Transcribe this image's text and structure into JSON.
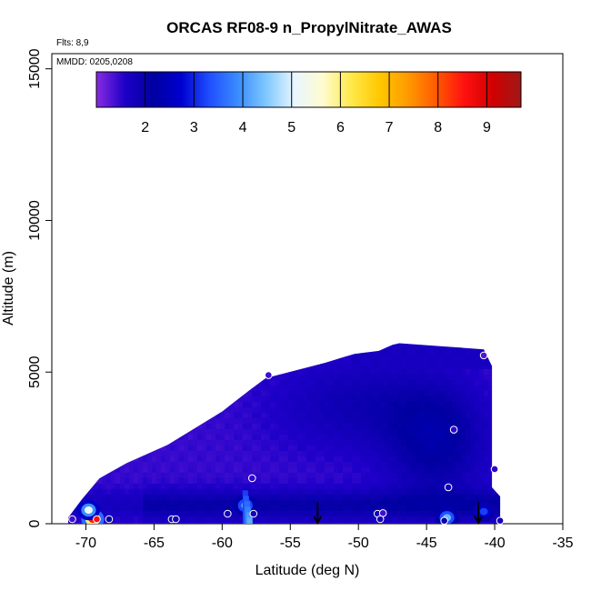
{
  "chart_data": {
    "type": "heatmap",
    "title": "ORCAS RF08-9 n_PropylNitrate_AWAS",
    "flights_note": "Flts: 8,9",
    "dates_note": "MMDD: 0205,0208",
    "xlabel": "Latitude (deg N)",
    "ylabel": "Altitude (m)",
    "xlim": [
      -72.5,
      -35
    ],
    "ylim": [
      0,
      15500
    ],
    "x_ticks": [
      -70,
      -65,
      -60,
      -55,
      -50,
      -45,
      -40,
      -35
    ],
    "y_ticks": [
      0,
      5000,
      10000,
      15000
    ],
    "colorbar": {
      "ticks": [
        2,
        3,
        4,
        5,
        6,
        7,
        8,
        9
      ],
      "range": [
        1,
        9.7
      ],
      "colors": [
        "#8a2be2",
        "#1e00c8",
        "#0000a0",
        "#0000d0",
        "#1f4fff",
        "#3a8cff",
        "#7ec8ff",
        "#e8f6ff",
        "#fffbd0",
        "#ffe94a",
        "#ffc800",
        "#ff9a00",
        "#ff5a00",
        "#ff1010",
        "#d00000",
        "#a01818"
      ]
    },
    "field_outline": [
      [
        -71.3,
        0
      ],
      [
        -71.3,
        200
      ],
      [
        -70.3,
        800
      ],
      [
        -69.0,
        1500
      ],
      [
        -67.0,
        2000
      ],
      [
        -64.0,
        2600
      ],
      [
        -60.0,
        3700
      ],
      [
        -58.0,
        4400
      ],
      [
        -56.8,
        4800
      ],
      [
        -52.5,
        5300
      ],
      [
        -50.3,
        5600
      ],
      [
        -48.5,
        5700
      ],
      [
        -47.5,
        5900
      ],
      [
        -47.0,
        5950
      ],
      [
        -40.8,
        5750
      ],
      [
        -40.2,
        5200
      ],
      [
        -40.2,
        1200
      ],
      [
        -39.6,
        900
      ],
      [
        -39.6,
        0
      ]
    ],
    "hotspots": [
      {
        "lat": -69.5,
        "alt": 150,
        "value": 8.5
      },
      {
        "lat": -69.8,
        "alt": 450,
        "value": 5.2
      },
      {
        "lat": -58.3,
        "alt": 600,
        "value": 4.2
      },
      {
        "lat": -43.5,
        "alt": 200,
        "value": 4.3
      },
      {
        "lat": -40.8,
        "alt": 400,
        "value": 3.2
      }
    ],
    "samples": [
      {
        "lat": -71.0,
        "alt": 150,
        "value": 1.4
      },
      {
        "lat": -69.2,
        "alt": 150,
        "value": 8.6
      },
      {
        "lat": -68.3,
        "alt": 150,
        "value": 2.2
      },
      {
        "lat": -63.7,
        "alt": 150,
        "value": 1.8
      },
      {
        "lat": -63.4,
        "alt": 150,
        "value": 1.8
      },
      {
        "lat": -59.6,
        "alt": 330,
        "value": 1.8
      },
      {
        "lat": -57.7,
        "alt": 330,
        "value": 1.8
      },
      {
        "lat": -57.8,
        "alt": 1500,
        "value": 1.5
      },
      {
        "lat": -56.6,
        "alt": 4900,
        "value": 1.4
      },
      {
        "lat": -48.6,
        "alt": 330,
        "value": 1.8
      },
      {
        "lat": -48.2,
        "alt": 350,
        "value": 1.4
      },
      {
        "lat": -48.4,
        "alt": 150,
        "value": 1.8
      },
      {
        "lat": -43.7,
        "alt": 100,
        "value": 2.0
      },
      {
        "lat": -43.4,
        "alt": 1200,
        "value": 1.8
      },
      {
        "lat": -43.0,
        "alt": 3100,
        "value": 1.5
      },
      {
        "lat": -40.8,
        "alt": 5550,
        "value": 1.3
      },
      {
        "lat": -40.0,
        "alt": 1800,
        "value": 1.5
      },
      {
        "lat": -39.6,
        "alt": 100,
        "value": 1.8
      }
    ],
    "arrows": [
      {
        "lat": -53.0
      },
      {
        "lat": -41.2
      }
    ]
  }
}
